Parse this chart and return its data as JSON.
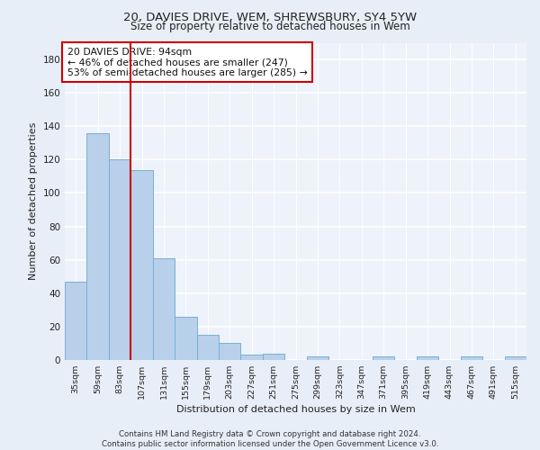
{
  "title1": "20, DAVIES DRIVE, WEM, SHREWSBURY, SY4 5YW",
  "title2": "Size of property relative to detached houses in Wem",
  "xlabel": "Distribution of detached houses by size in Wem",
  "ylabel": "Number of detached properties",
  "categories": [
    "35sqm",
    "59sqm",
    "83sqm",
    "107sqm",
    "131sqm",
    "155sqm",
    "179sqm",
    "203sqm",
    "227sqm",
    "251sqm",
    "275sqm",
    "299sqm",
    "323sqm",
    "347sqm",
    "371sqm",
    "395sqm",
    "419sqm",
    "443sqm",
    "467sqm",
    "491sqm",
    "515sqm"
  ],
  "values": [
    47,
    136,
    120,
    114,
    61,
    26,
    15,
    10,
    3,
    4,
    0,
    2,
    0,
    0,
    2,
    0,
    2,
    0,
    2,
    0,
    2
  ],
  "bar_color": "#b8d0ea",
  "bar_edge_color": "#7aafd4",
  "vline_x": 2.5,
  "vline_color": "#cc0000",
  "annotation_text": "20 DAVIES DRIVE: 94sqm\n← 46% of detached houses are smaller (247)\n53% of semi-detached houses are larger (285) →",
  "annotation_box_color": "white",
  "annotation_box_edge": "#cc0000",
  "ylim": [
    0,
    190
  ],
  "yticks": [
    0,
    20,
    40,
    60,
    80,
    100,
    120,
    140,
    160,
    180
  ],
  "footer": "Contains HM Land Registry data © Crown copyright and database right 2024.\nContains public sector information licensed under the Open Government Licence v3.0.",
  "bg_color": "#e8eef8",
  "plot_bg_color": "#eef2fb"
}
